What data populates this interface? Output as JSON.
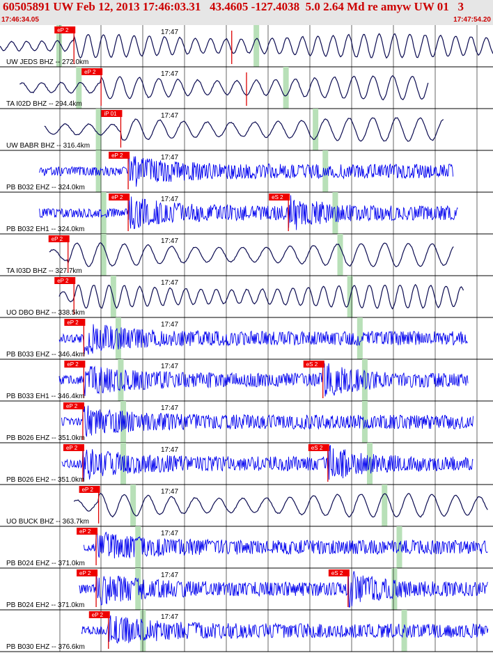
{
  "header": {
    "title": "60505891 UW Feb 12, 2013 17:46:03.31   43.4605 -127.4038  5.0 2.64 Md re amyw UW 01   3",
    "time_start": "17:46:34.05",
    "time_end": "17:47:54.20"
  },
  "minute_label": "17:47",
  "colors": {
    "header_bg": "#e6e6e6",
    "header_text": "#cc0000",
    "pick_box": "#ee0000",
    "pick_text": "#ffffff",
    "green_band": "#b8e0b8",
    "trace_bhz": "#0a0a50",
    "trace_ehz": "#0000ee",
    "grid": "#000000"
  },
  "traces": [
    {
      "label": "UW JEDS BHZ -- 272.0km",
      "type": "bhz",
      "picks": [
        {
          "name": "eP 2",
          "t": 0.15
        },
        {
          "name": "",
          "t": 0.47
        }
      ],
      "green": [
        0.12,
        0.52
      ],
      "start": 0.0,
      "end": 1.0
    },
    {
      "label": "TA I02D BHZ -- 294.4km",
      "type": "bhz",
      "picks": [
        {
          "name": "eP 2",
          "t": 0.205
        },
        {
          "name": "",
          "t": 0.5
        }
      ],
      "green": [
        0.16,
        0.58
      ],
      "start": 0.04,
      "end": 0.87
    },
    {
      "label": "UW BABR BHZ -- 316.4km",
      "type": "bhz",
      "picks": [
        {
          "name": "iP 01",
          "t": 0.245
        }
      ],
      "green": [
        0.2,
        0.64
      ],
      "start": 0.09,
      "end": 0.9
    },
    {
      "label": "PB B032 EHZ -- 324.0km",
      "type": "ehz",
      "picks": [
        {
          "name": "eP 2",
          "t": 0.26
        }
      ],
      "green": [
        0.2,
        0.66
      ],
      "start": 0.08,
      "end": 0.92
    },
    {
      "label": "PB B032 EH1 -- 324.0km",
      "type": "ehz",
      "picks": [
        {
          "name": "eP 2",
          "t": 0.26
        },
        {
          "name": "eS 2",
          "t": 0.585
        }
      ],
      "green": [
        0.21,
        0.68
      ],
      "start": 0.08,
      "end": 0.93
    },
    {
      "label": "TA I03D BHZ -- 327.7km",
      "type": "bhz",
      "picks": [
        {
          "name": "eP 2",
          "t": 0.138
        }
      ],
      "green": [
        0.21,
        0.69
      ],
      "start": 0.1,
      "end": 0.92
    },
    {
      "label": "UO DBO BHZ -- 338.5km",
      "type": "bhz",
      "picks": [
        {
          "name": "eP 2",
          "t": 0.15
        }
      ],
      "green": [
        0.23,
        0.71
      ],
      "start": 0.12,
      "end": 0.94
    },
    {
      "label": "PB B033 EHZ -- 346.4km",
      "type": "ehz",
      "picks": [
        {
          "name": "eP 2",
          "t": 0.17
        }
      ],
      "green": [
        0.24,
        0.73
      ],
      "start": 0.12,
      "end": 0.95
    },
    {
      "label": "PB B033 EH1 -- 346.4km",
      "type": "ehz",
      "picks": [
        {
          "name": "eP 2",
          "t": 0.17
        },
        {
          "name": "eS 2",
          "t": 0.655
        }
      ],
      "green": [
        0.245,
        0.74
      ],
      "start": 0.12,
      "end": 0.95
    },
    {
      "label": "PB B026 EHZ -- 351.0km",
      "type": "ehz",
      "picks": [
        {
          "name": "eP 2",
          "t": 0.168
        }
      ],
      "green": [
        0.25,
        0.74
      ],
      "start": 0.125,
      "end": 0.96
    },
    {
      "label": "PB B026 EH2 -- 351.0km",
      "type": "ehz",
      "picks": [
        {
          "name": "eP 2",
          "t": 0.168
        },
        {
          "name": "eS 2",
          "t": 0.665
        }
      ],
      "green": [
        0.25,
        0.75
      ],
      "start": 0.125,
      "end": 0.96
    },
    {
      "label": "UO BUCK BHZ -- 363.7km",
      "type": "bhz",
      "picks": [
        {
          "name": "eP 2",
          "t": 0.2
        }
      ],
      "green": [
        0.27,
        0.78
      ],
      "start": 0.15,
      "end": 0.99
    },
    {
      "label": "PB B024 EHZ -- 371.0km",
      "type": "ehz",
      "picks": [
        {
          "name": "eP 2",
          "t": 0.195
        }
      ],
      "green": [
        0.28,
        0.81
      ],
      "start": 0.17,
      "end": 0.99
    },
    {
      "label": "PB B024 EH2 -- 371.0km",
      "type": "ehz",
      "picks": [
        {
          "name": "eP 2",
          "t": 0.195
        },
        {
          "name": "eS 2",
          "t": 0.706
        }
      ],
      "green": [
        0.28,
        0.8
      ],
      "start": 0.16,
      "end": 0.99
    },
    {
      "label": "PB B030 EHZ -- 376.6km",
      "type": "ehz",
      "picks": [
        {
          "name": "eP 2",
          "t": 0.22
        }
      ],
      "green": [
        0.29,
        0.82
      ],
      "start": 0.165,
      "end": 0.99
    }
  ]
}
